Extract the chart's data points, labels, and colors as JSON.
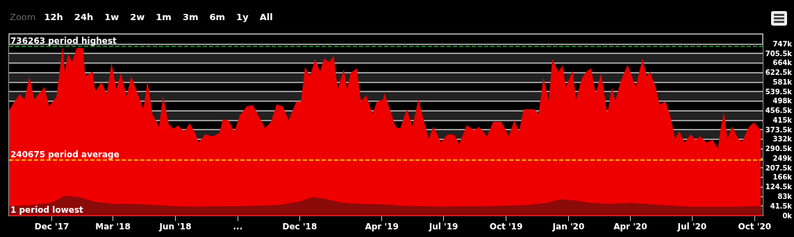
{
  "chart_data": {
    "type": "area",
    "annotations": [
      "Zoom",
      "12h",
      "24h",
      "1w",
      "2w",
      "1m",
      "3m",
      "6m",
      "1y",
      "All"
    ],
    "xlim": [
      "2017-09-29",
      "2020-10-13"
    ],
    "xticks": [
      {
        "value": "2017-12-01",
        "label": "Dec '17"
      },
      {
        "value": "2018-03-01",
        "label": "Mar '18"
      },
      {
        "value": "2018-06-01",
        "label": "Jun '18"
      },
      {
        "value": "2018-09-01",
        "label": "..."
      },
      {
        "value": "2018-12-01",
        "label": "Dec '18"
      },
      {
        "value": "2019-04-01",
        "label": "Apr '19"
      },
      {
        "value": "2019-07-01",
        "label": "Jul '19"
      },
      {
        "value": "2019-10-01",
        "label": "Oct '19"
      },
      {
        "value": "2020-01-01",
        "label": "Jan '20"
      },
      {
        "value": "2020-04-01",
        "label": "Apr '20"
      },
      {
        "value": "2020-07-01",
        "label": "Jul '20"
      },
      {
        "value": "2020-10-01",
        "label": "Oct '20"
      }
    ],
    "ylim": [
      0,
      790000
    ],
    "yticks": [
      {
        "value": 0,
        "label": "0k"
      },
      {
        "value": 41500,
        "label": "41.5k"
      },
      {
        "value": 83000,
        "label": "83k"
      },
      {
        "value": 124500,
        "label": "124.5k"
      },
      {
        "value": 166000,
        "label": "166k"
      },
      {
        "value": 207500,
        "label": "207.5k"
      },
      {
        "value": 249000,
        "label": "249k"
      },
      {
        "value": 290500,
        "label": "290.5k"
      },
      {
        "value": 332000,
        "label": "332k"
      },
      {
        "value": 373500,
        "label": "373.5k"
      },
      {
        "value": 415000,
        "label": "415k"
      },
      {
        "value": 456500,
        "label": "456.5k"
      },
      {
        "value": 498000,
        "label": "498k"
      },
      {
        "value": 539500,
        "label": "539.5k"
      },
      {
        "value": 581000,
        "label": "581k"
      },
      {
        "value": 622500,
        "label": "622.5k"
      },
      {
        "value": 664000,
        "label": "664k"
      },
      {
        "value": 705500,
        "label": "705.5k"
      },
      {
        "value": 747000,
        "label": "747k"
      }
    ],
    "grid": "y",
    "series": [
      {
        "color": "#ee0000",
        "x": [
          "2017-09-29",
          "2017-10-07",
          "2017-10-15",
          "2017-10-22",
          "2017-10-29",
          "2017-11-05",
          "2017-11-20",
          "2017-11-27",
          "2017-12-08",
          "2017-12-17",
          "2017-12-20",
          "2017-12-25",
          "2017-12-31",
          "2018-01-07",
          "2018-01-16",
          "2018-01-19",
          "2018-01-30",
          "2018-02-03",
          "2018-02-12",
          "2018-02-20",
          "2018-02-27",
          "2018-03-06",
          "2018-03-13",
          "2018-03-21",
          "2018-03-28",
          "2018-04-08",
          "2018-04-15",
          "2018-04-21",
          "2018-04-28",
          "2018-05-08",
          "2018-05-14",
          "2018-05-22",
          "2018-05-29",
          "2018-06-05",
          "2018-06-14",
          "2018-06-22",
          "2018-07-01",
          "2018-07-05",
          "2018-07-15",
          "2018-07-26",
          "2018-08-05",
          "2018-08-10",
          "2018-08-18",
          "2018-08-27",
          "2018-09-04",
          "2018-09-14",
          "2018-09-23",
          "2018-10-02",
          "2018-10-11",
          "2018-10-20",
          "2018-10-28",
          "2018-11-06",
          "2018-11-15",
          "2018-11-26",
          "2018-12-03",
          "2018-12-09",
          "2018-12-16",
          "2018-12-24",
          "2018-12-31",
          "2019-01-06",
          "2019-01-14",
          "2019-01-20",
          "2019-01-26",
          "2019-02-04",
          "2019-02-09",
          "2019-02-14",
          "2019-02-23",
          "2019-03-01",
          "2019-03-09",
          "2019-03-18",
          "2019-03-25",
          "2019-04-03",
          "2019-04-05",
          "2019-04-21",
          "2019-04-28",
          "2019-05-08",
          "2019-05-16",
          "2019-05-25",
          "2019-06-03",
          "2019-06-09",
          "2019-06-16",
          "2019-06-27",
          "2019-07-07",
          "2019-07-17",
          "2019-07-24",
          "2019-08-04",
          "2019-08-15",
          "2019-08-22",
          "2019-09-03",
          "2019-09-12",
          "2019-09-24",
          "2019-10-05",
          "2019-10-13",
          "2019-10-20",
          "2019-10-27",
          "2019-11-03",
          "2019-11-11",
          "2019-11-18",
          "2019-11-25",
          "2019-12-03",
          "2019-12-08",
          "2019-12-17",
          "2019-12-23",
          "2019-12-28",
          "2020-01-07",
          "2020-01-12",
          "2020-01-21",
          "2020-01-27",
          "2020-02-03",
          "2020-02-10",
          "2020-02-18",
          "2020-02-27",
          "2020-03-05",
          "2020-03-10",
          "2020-03-18",
          "2020-03-28",
          "2020-04-09",
          "2020-04-19",
          "2020-04-25",
          "2020-04-30",
          "2020-05-08",
          "2020-05-14",
          "2020-05-23",
          "2020-05-30",
          "2020-06-06",
          "2020-06-12",
          "2020-06-20",
          "2020-06-29",
          "2020-07-06",
          "2020-07-13",
          "2020-07-22",
          "2020-07-31",
          "2020-08-08",
          "2020-08-12",
          "2020-08-17",
          "2020-08-22",
          "2020-08-29",
          "2020-09-07",
          "2020-09-13",
          "2020-09-23",
          "2020-09-30",
          "2020-10-10"
        ],
        "values": [
          456000,
          495000,
          528000,
          504000,
          604000,
          504000,
          558000,
          474000,
          516000,
          730000,
          625000,
          700000,
          667000,
          730000,
          727000,
          604000,
          625000,
          537000,
          580000,
          528000,
          661000,
          549000,
          619000,
          516000,
          604000,
          516000,
          462000,
          586000,
          441000,
          386000,
          516000,
          398000,
          377000,
          392000,
          365000,
          401000,
          353000,
          317000,
          353000,
          344000,
          359000,
          419000,
          413000,
          365000,
          435000,
          474000,
          480000,
          429000,
          380000,
          407000,
          483000,
          474000,
          413000,
          495000,
          495000,
          646000,
          604000,
          679000,
          625000,
          682000,
          667000,
          694000,
          549000,
          634000,
          549000,
          619000,
          640000,
          495000,
          522000,
          441000,
          495000,
          504000,
          531000,
          386000,
          377000,
          462000,
          386000,
          504000,
          398000,
          332000,
          386000,
          317000,
          353000,
          350000,
          311000,
          392000,
          371000,
          386000,
          344000,
          407000,
          407000,
          344000,
          413000,
          365000,
          462000,
          462000,
          462000,
          441000,
          598000,
          495000,
          679000,
          625000,
          652000,
          558000,
          628000,
          504000,
          598000,
          625000,
          640000,
          528000,
          619000,
          441000,
          555000,
          495000,
          586000,
          655000,
          558000,
          682000,
          604000,
          625000,
          558000,
          483000,
          495000,
          429000,
          332000,
          365000,
          317000,
          353000,
          329000,
          344000,
          317000,
          329000,
          290000,
          377000,
          447000,
          332000,
          386000,
          332000,
          323000,
          386000,
          404000,
          371000
        ]
      },
      {
        "color": "#8b0a0a",
        "x": [
          "2017-09-29",
          "2017-11-01",
          "2017-12-01",
          "2017-12-20",
          "2018-01-10",
          "2018-02-01",
          "2018-03-01",
          "2018-04-01",
          "2018-05-01",
          "2018-06-01",
          "2018-07-01",
          "2018-08-01",
          "2018-09-01",
          "2018-10-01",
          "2018-11-01",
          "2018-12-01",
          "2018-12-20",
          "2019-01-10",
          "2019-02-01",
          "2019-03-01",
          "2019-04-01",
          "2019-05-01",
          "2019-06-01",
          "2019-07-01",
          "2019-08-01",
          "2019-09-01",
          "2019-10-01",
          "2019-11-01",
          "2019-12-01",
          "2019-12-20",
          "2020-01-10",
          "2020-02-01",
          "2020-03-01",
          "2020-04-01",
          "2020-05-01",
          "2020-06-01",
          "2020-07-01",
          "2020-08-01",
          "2020-09-01",
          "2020-10-01",
          "2020-10-12"
        ],
        "values": [
          40000,
          45000,
          55000,
          85000,
          80000,
          60000,
          50000,
          50000,
          45000,
          40000,
          38000,
          40000,
          40000,
          42000,
          45000,
          60000,
          80000,
          70000,
          55000,
          50000,
          48000,
          42000,
          40000,
          38000,
          40000,
          40000,
          42000,
          45000,
          55000,
          70000,
          65000,
          55000,
          50000,
          55000,
          48000,
          42000,
          38000,
          38000,
          38000,
          40000,
          40000
        ]
      }
    ],
    "ref_lines": [
      {
        "axis": "y",
        "value": 736263,
        "label": "736263 period highest",
        "color": "#22aa22",
        "line_style": "dashed"
      },
      {
        "axis": "y",
        "value": 240675,
        "label": "240675 period average",
        "color": "#ffee00",
        "line_style": "dashed"
      },
      {
        "axis": "y",
        "value": 1,
        "label": "1 period lowest",
        "color": "#ee0000",
        "line_style": "solid"
      }
    ]
  }
}
